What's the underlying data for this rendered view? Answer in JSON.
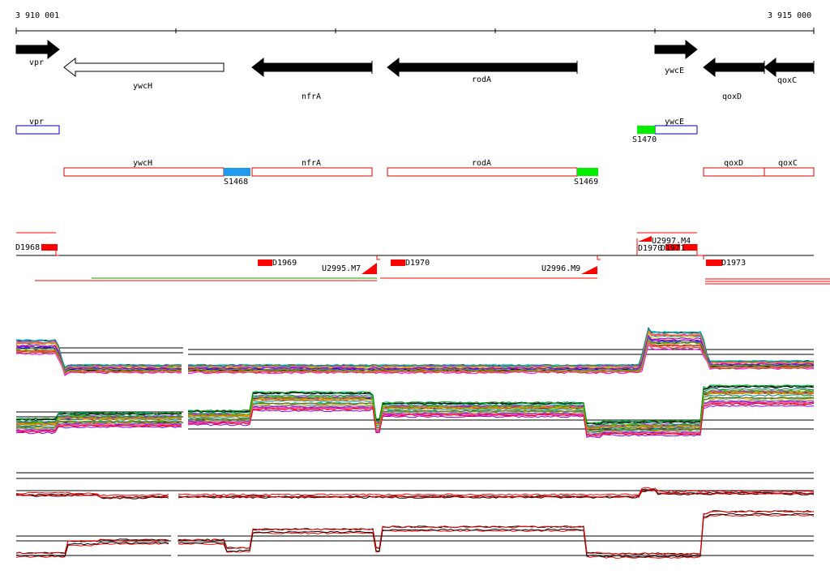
{
  "ruler": {
    "start_label": "3 910 001",
    "end_label": "3 915 000"
  },
  "genes": [
    {
      "name": "vpr",
      "strand": "+",
      "filled": true
    },
    {
      "name": "ywcH",
      "strand": "-",
      "filled": false
    },
    {
      "name": "nfrA",
      "strand": "-",
      "filled": true
    },
    {
      "name": "rodA",
      "strand": "-",
      "filled": true
    },
    {
      "name": "ywcE",
      "strand": "+",
      "filled": true
    },
    {
      "name": "qoxD",
      "strand": "-",
      "filled": true
    },
    {
      "name": "qoxC",
      "strand": "-",
      "filled": true
    }
  ],
  "segments": {
    "blue_boxes": [
      {
        "label": "vpr"
      },
      {
        "label": "ywcE"
      }
    ],
    "red_boxes": [
      {
        "label": "ywcH"
      },
      {
        "label": "nfrA"
      },
      {
        "label": "rodA"
      },
      {
        "label": "qoxD"
      },
      {
        "label": "qoxC"
      }
    ],
    "sites": [
      {
        "label": "S1468",
        "color": "#1e9bef"
      },
      {
        "label": "S1469",
        "color": "#00ee00"
      },
      {
        "label": "S1470",
        "color": "#00ee00"
      }
    ]
  },
  "regulatory": {
    "d_labels": [
      "D1968",
      "D1969",
      "D1970",
      "D1970",
      "D1971",
      "D1973"
    ],
    "u_labels": [
      "U2995.M7",
      "U2996.M9",
      "U2997.M4"
    ],
    "colors": {
      "feature": "#ff0000",
      "green_line": "#00aa00"
    }
  },
  "expression": {
    "panel1_colors": [
      "#ff0000",
      "#00aa00",
      "#0000ff",
      "#ff00ff",
      "#00cccc",
      "#cccc00",
      "#ff8800",
      "#8800ff",
      "#008888",
      "#aa5500",
      "#000000",
      "#888888",
      "#ff66aa",
      "#66aa00"
    ],
    "panel2_colors": [
      "#000000",
      "#ff0000"
    ]
  }
}
